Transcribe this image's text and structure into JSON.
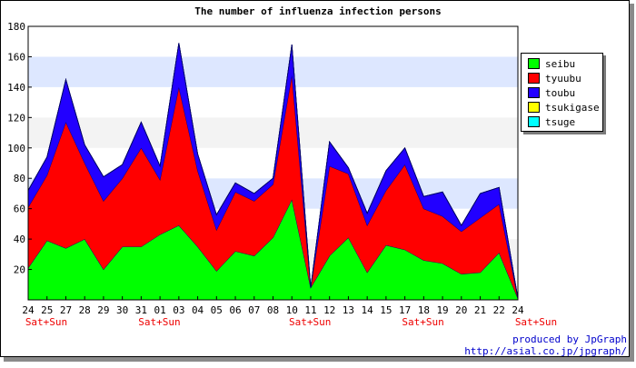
{
  "chart_data": {
    "type": "area",
    "stacked": true,
    "title": "The number of influenza infection persons",
    "xlabel": "",
    "ylabel": "",
    "ylim": [
      0,
      180
    ],
    "yticks": [
      20,
      40,
      60,
      80,
      100,
      120,
      140,
      160,
      180
    ],
    "grid": true,
    "legend_position": "top-right",
    "categories": [
      "24",
      "25",
      "27",
      "28",
      "29",
      "30",
      "31",
      "01",
      "03",
      "04",
      "05",
      "06",
      "07",
      "08",
      "10",
      "11",
      "12",
      "13",
      "14",
      "15",
      "17",
      "18",
      "19",
      "20",
      "21",
      "22",
      "24"
    ],
    "weekend_labels": [
      "Sat+Sun",
      "",
      "",
      "",
      "",
      "",
      "Sat+Sun",
      "",
      "",
      "",
      "",
      "",
      "",
      "",
      "Sat+Sun",
      "",
      "",
      "",
      "",
      "",
      "Sat+Sun",
      "",
      "",
      "",
      "",
      "",
      "Sat+Sun"
    ],
    "series": [
      {
        "name": "seibu",
        "color": "#00ff00",
        "values": [
          21,
          39,
          34,
          40,
          20,
          35,
          35,
          43,
          49,
          35,
          19,
          32,
          29,
          41,
          66,
          8,
          29,
          41,
          18,
          36,
          33,
          26,
          24,
          17,
          18,
          31,
          1
        ]
      },
      {
        "name": "tyuubu",
        "color": "#ff0000",
        "values": [
          40,
          43,
          83,
          50,
          45,
          45,
          65,
          36,
          91,
          50,
          27,
          39,
          36,
          35,
          82,
          0,
          59,
          42,
          31,
          36,
          56,
          34,
          31,
          28,
          36,
          32,
          0
        ]
      },
      {
        "name": "toubu",
        "color": "#2200ff",
        "values": [
          11,
          12,
          28,
          12,
          16,
          9,
          17,
          9,
          29,
          11,
          10,
          6,
          5,
          4,
          20,
          0,
          16,
          4,
          8,
          13,
          11,
          8,
          16,
          4,
          16,
          11,
          0
        ]
      },
      {
        "name": "tsukigase",
        "color": "#ffff00",
        "values": [
          0,
          0,
          0,
          0,
          0,
          0,
          0,
          0,
          0,
          0,
          0,
          0,
          0,
          0,
          0,
          0,
          0,
          0,
          0,
          0,
          0,
          0,
          0,
          0,
          0,
          0,
          0
        ]
      },
      {
        "name": "tsuge",
        "color": "#00ffff",
        "values": [
          0,
          0,
          0,
          0,
          0,
          0,
          0,
          0,
          0,
          0,
          0,
          0,
          0,
          0,
          0,
          0,
          0,
          0,
          0,
          0,
          0,
          0,
          0,
          0,
          0,
          0,
          0
        ]
      }
    ]
  },
  "footer": {
    "credit_line1": "produced by JpGraph",
    "credit_line2": "http://asial.co.jp/jpgraph/"
  }
}
